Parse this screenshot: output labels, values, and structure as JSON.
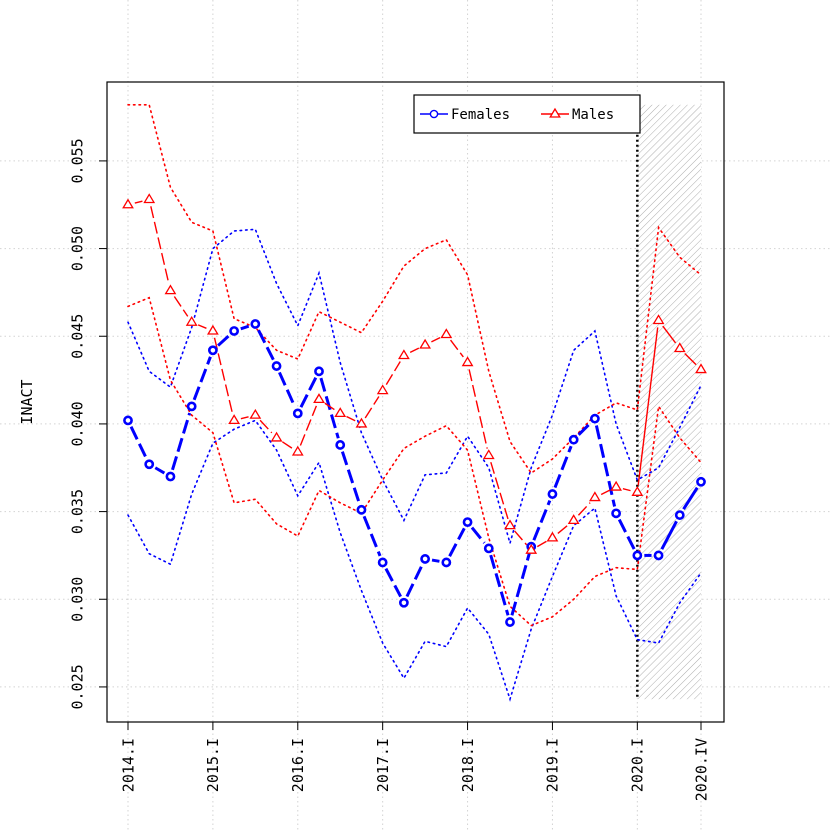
{
  "chart_data": {
    "type": "line",
    "title": "",
    "xlabel": "",
    "ylabel": "INACT",
    "ylim": [
      0.023,
      0.0595
    ],
    "yticks": [
      0.025,
      0.03,
      0.035,
      0.04,
      0.045,
      0.05,
      0.055
    ],
    "ytick_labels": [
      "0.025",
      "0.030",
      "0.035",
      "0.040",
      "0.045",
      "0.050",
      "0.055"
    ],
    "x_periods": [
      "2014.I",
      "2014.II",
      "2014.III",
      "2014.IV",
      "2015.I",
      "2015.II",
      "2015.III",
      "2015.IV",
      "2016.I",
      "2016.II",
      "2016.III",
      "2016.IV",
      "2017.I",
      "2017.II",
      "2017.III",
      "2017.IV",
      "2018.I",
      "2018.II",
      "2018.III",
      "2018.IV",
      "2019.I",
      "2019.II",
      "2019.III",
      "2019.IV",
      "2020.I",
      "2020.II",
      "2020.III",
      "2020.IV"
    ],
    "xticks": [
      0,
      4,
      8,
      12,
      16,
      20,
      24,
      27
    ],
    "xtick_labels": [
      "2014.I",
      "2015.I",
      "2016.I",
      "2017.I",
      "2018.I",
      "2019.I",
      "2020.I",
      "2020.IV"
    ],
    "forecast_start_index": 24,
    "grid": true,
    "legend_position": "top-right",
    "series": [
      {
        "name": "Females",
        "color": "#0000ff",
        "marker": "circle",
        "values": [
          0.0402,
          0.0377,
          0.037,
          0.041,
          0.0442,
          0.0453,
          0.0457,
          0.0433,
          0.0406,
          0.043,
          0.0388,
          0.0351,
          0.0321,
          0.0298,
          0.0323,
          0.0321,
          0.0344,
          0.0329,
          0.0287,
          0.033,
          0.036,
          0.0391,
          0.0403,
          0.0349,
          0.0325,
          0.0325,
          0.0348,
          0.0367
        ],
        "upper": [
          0.0458,
          0.043,
          0.0421,
          0.0455,
          0.05,
          0.051,
          0.0511,
          0.048,
          0.0456,
          0.0486,
          0.0435,
          0.0395,
          0.0368,
          0.0345,
          0.0371,
          0.0372,
          0.0393,
          0.0375,
          0.0332,
          0.0375,
          0.0405,
          0.0442,
          0.0453,
          0.04,
          0.0368,
          0.0375,
          0.0398,
          0.0422
        ],
        "lower": [
          0.0348,
          0.0326,
          0.032,
          0.036,
          0.0389,
          0.0397,
          0.0402,
          0.0385,
          0.0359,
          0.0378,
          0.0338,
          0.0305,
          0.0275,
          0.0255,
          0.0276,
          0.0273,
          0.0295,
          0.028,
          0.0243,
          0.0283,
          0.0313,
          0.0342,
          0.0352,
          0.0302,
          0.0277,
          0.0275,
          0.0298,
          0.0315
        ]
      },
      {
        "name": "Males",
        "color": "#ff0000",
        "marker": "triangle",
        "values": [
          0.0525,
          0.0528,
          0.0476,
          0.0458,
          0.0453,
          0.0402,
          0.0405,
          0.0392,
          0.0384,
          0.0414,
          0.0406,
          0.04,
          0.0419,
          0.0439,
          0.0445,
          0.0451,
          0.0435,
          0.0382,
          0.0342,
          0.0328,
          0.0335,
          0.0345,
          0.0358,
          0.0364,
          0.0361,
          0.0459,
          0.0443,
          0.0431
        ],
        "upper": [
          0.0582,
          0.0582,
          0.0535,
          0.0515,
          0.051,
          0.046,
          0.0455,
          0.0442,
          0.0437,
          0.0464,
          0.0458,
          0.0452,
          0.047,
          0.049,
          0.05,
          0.0505,
          0.0485,
          0.043,
          0.039,
          0.0372,
          0.038,
          0.0392,
          0.0405,
          0.0412,
          0.0408,
          0.0512,
          0.0495,
          0.0485
        ],
        "lower": [
          0.0467,
          0.0472,
          0.0425,
          0.0405,
          0.0395,
          0.0355,
          0.0357,
          0.0343,
          0.0336,
          0.0362,
          0.0355,
          0.0349,
          0.0368,
          0.0386,
          0.0393,
          0.0399,
          0.0385,
          0.0335,
          0.0296,
          0.0285,
          0.029,
          0.03,
          0.0313,
          0.0318,
          0.0317,
          0.041,
          0.0392,
          0.0378
        ]
      }
    ]
  }
}
